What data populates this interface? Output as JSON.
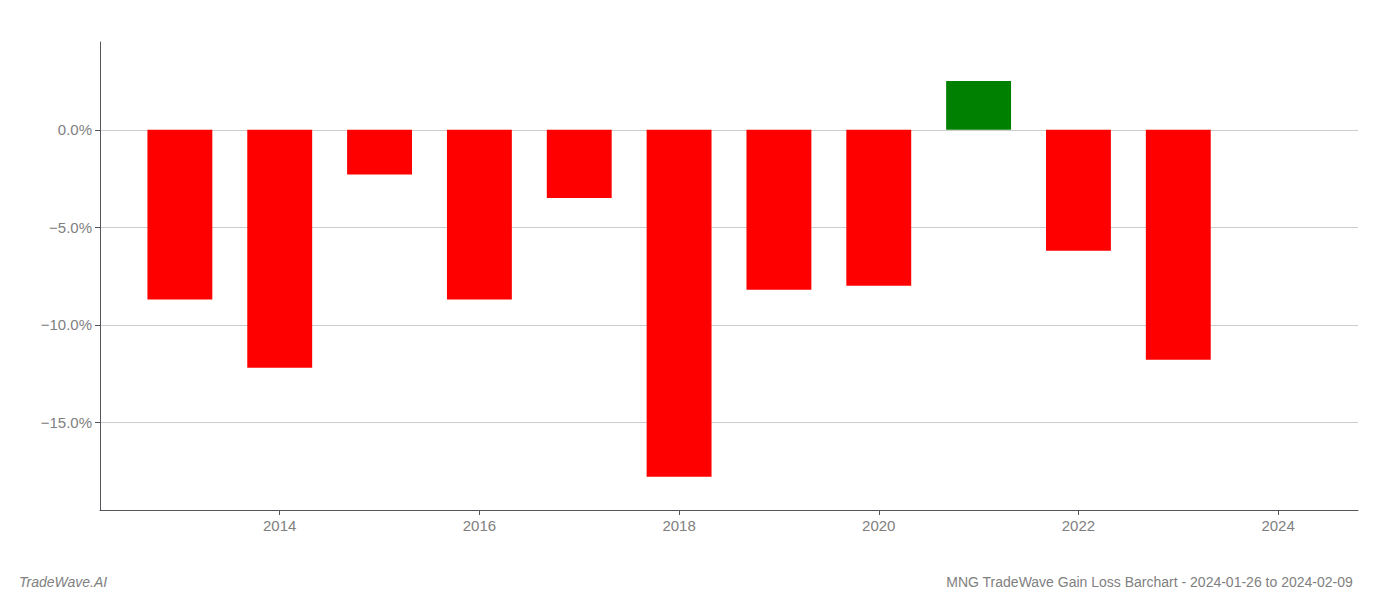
{
  "chart_data": {
    "type": "bar",
    "title": "MNG TradeWave Gain Loss Barchart - 2024-01-26 to 2024-02-09",
    "annotations": [
      "TradeWave.AI"
    ],
    "x": [
      2013,
      2014,
      2015,
      2016,
      2017,
      2018,
      2019,
      2020,
      2021,
      2022,
      2023
    ],
    "values": [
      -8.7,
      -12.2,
      -2.3,
      -8.7,
      -3.5,
      -17.8,
      -8.2,
      -8.0,
      2.5,
      -6.2,
      -11.8
    ],
    "colors": [
      "#ff0000",
      "#ff0000",
      "#ff0000",
      "#ff0000",
      "#ff0000",
      "#ff0000",
      "#ff0000",
      "#ff0000",
      "#008000",
      "#ff0000",
      "#ff0000"
    ],
    "xlim": [
      2012.2,
      2024.8
    ],
    "xticks": [
      2014,
      2016,
      2018,
      2020,
      2022,
      2024
    ],
    "ylim": [
      -19.5,
      4.5
    ],
    "yticks": [
      {
        "value": 0.0,
        "label": "0.0%"
      },
      {
        "value": -5.0,
        "label": "−5.0%"
      },
      {
        "value": -10.0,
        "label": "−10.0%"
      },
      {
        "value": -15.0,
        "label": "−15.0%"
      }
    ],
    "grid": true
  }
}
